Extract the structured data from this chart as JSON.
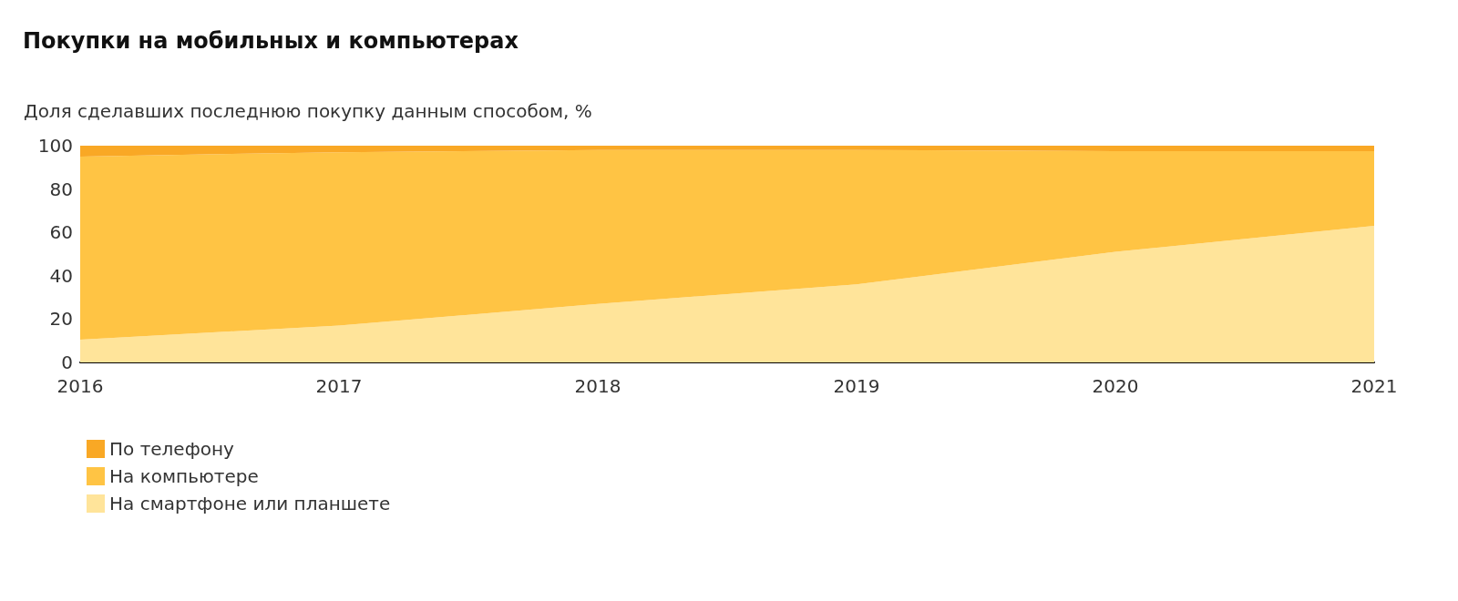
{
  "chart_data": {
    "type": "area",
    "stacked": true,
    "title": "Покупки на мобильных и компьютерах",
    "ylabel": "Доля сделавших последнюю покупку данным способом, %",
    "categories": [
      "2016",
      "2017",
      "2018",
      "2019",
      "2020",
      "2021"
    ],
    "ylim": [
      0,
      100
    ],
    "yticks": [
      0,
      20,
      40,
      60,
      80,
      100
    ],
    "grid": false,
    "legend": "bottom",
    "marker": "none",
    "series": [
      {
        "name": "На смартфоне или планшете",
        "color": "#ffe49a",
        "values": [
          10.5,
          17,
          27,
          36,
          51,
          63
        ]
      },
      {
        "name": "На компьютере",
        "color": "#ffc444",
        "values": [
          84.5,
          80,
          71,
          62,
          46.5,
          34.5
        ]
      },
      {
        "name": "По телефону",
        "color": "#f9a825",
        "values": [
          5,
          3,
          2,
          2,
          2.5,
          2.5
        ]
      }
    ]
  }
}
